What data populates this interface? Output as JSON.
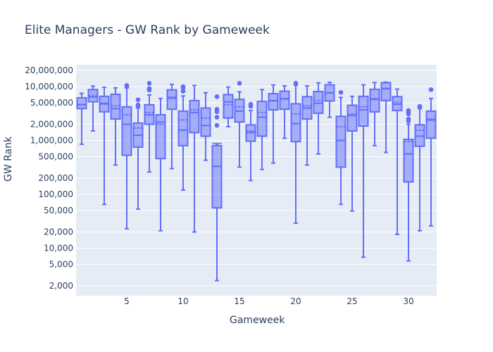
{
  "chart_data": {
    "type": "box",
    "title": "Elite Managers - GW Rank by Gameweek",
    "xlabel": "Gameweek",
    "ylabel": "GW Rank",
    "yscale": "log",
    "ylim": [
      1700,
      21000
    ],
    "ylim_note": "approx 1,700 to 21,000,000",
    "y_range": [
      1700,
      21000000
    ],
    "x_range": [
      0.5,
      32.5
    ],
    "yticks": [
      2000,
      5000,
      10000,
      20000,
      50000,
      100000,
      200000,
      500000,
      1000000,
      2000000,
      5000000,
      10000000,
      20000000
    ],
    "ytick_labels": [
      "2,000",
      "5,000",
      "10,000",
      "20,000",
      "50,000",
      "100,000",
      "200,000",
      "500,000",
      "1,000,000",
      "2,000,000",
      "5,000,000",
      "10,000,000",
      "20,000,000"
    ],
    "xticks": [
      5,
      10,
      15,
      20,
      25,
      30
    ],
    "xtick_labels": [
      "5",
      "10",
      "15",
      "20",
      "25",
      "30"
    ],
    "color": "#636efa",
    "fill": "rgba(99,110,250,0.5)",
    "grid": true,
    "legend": false,
    "boxes": [
      {
        "x": 1,
        "lf": 850000,
        "q1": 3900000,
        "med": 4600000,
        "q3": 6200000,
        "uf": 7500000,
        "mean": 4700000,
        "out": []
      },
      {
        "x": 2,
        "lf": 1500000,
        "q1": 5200000,
        "med": 6400000,
        "q3": 8800000,
        "uf": 10200000,
        "mean": 6800000,
        "out": []
      },
      {
        "x": 3,
        "lf": 65000,
        "q1": 3400000,
        "med": 4900000,
        "q3": 6600000,
        "uf": 9700000,
        "mean": 4700000,
        "out": []
      },
      {
        "x": 4,
        "lf": 350000,
        "q1": 2500000,
        "med": 3900000,
        "q3": 7200000,
        "uf": 9500000,
        "mean": 4400000,
        "out": []
      },
      {
        "x": 5,
        "lf": 23000,
        "q1": 530000,
        "med": 2000000,
        "q3": 4200000,
        "uf": 9500000,
        "mean": 3000000,
        "out": [
          10500000,
          10000000
        ]
      },
      {
        "x": 6,
        "lf": 53000,
        "q1": 750000,
        "med": 1250000,
        "q3": 2100000,
        "uf": 4000000,
        "mean": 1700000,
        "out": [
          5700000,
          4600000,
          4300000
        ]
      },
      {
        "x": 7,
        "lf": 260000,
        "q1": 2000000,
        "med": 3000000,
        "q3": 4600000,
        "uf": 7000000,
        "mean": 3300000,
        "out": [
          11500000,
          9200000,
          8600000
        ]
      },
      {
        "x": 8,
        "lf": 21000,
        "q1": 460000,
        "med": 2200000,
        "q3": 3000000,
        "uf": 6000000,
        "mean": 2000000,
        "out": []
      },
      {
        "x": 9,
        "lf": 300000,
        "q1": 3800000,
        "med": 6100000,
        "q3": 8700000,
        "uf": 11000000,
        "mean": 6400000,
        "out": []
      },
      {
        "x": 10,
        "lf": 120000,
        "q1": 800000,
        "med": 1550000,
        "q3": 3500000,
        "uf": 6700000,
        "mean": 2400000,
        "out": [
          10000000,
          9500000,
          8200000
        ]
      },
      {
        "x": 11,
        "lf": 20000,
        "q1": 1400000,
        "med": 3300000,
        "q3": 5500000,
        "uf": 10500000,
        "mean": 3700000,
        "out": []
      },
      {
        "x": 12,
        "lf": 430000,
        "q1": 1200000,
        "med": 1900000,
        "q3": 4000000,
        "uf": 7700000,
        "mean": 2600000,
        "out": []
      },
      {
        "x": 13,
        "lf": 2500,
        "q1": 56000,
        "med": 330000,
        "q3": 800000,
        "uf": 870000,
        "mean": 880000,
        "out": [
          6500000,
          3800000,
          3400000,
          2700000,
          1900000
        ]
      },
      {
        "x": 14,
        "lf": 1800000,
        "q1": 2600000,
        "med": 5200000,
        "q3": 7100000,
        "uf": 9800000,
        "mean": 4600000,
        "out": []
      },
      {
        "x": 15,
        "lf": 320000,
        "q1": 2200000,
        "med": 3500000,
        "q3": 5800000,
        "uf": 8000000,
        "mean": 4200000,
        "out": [
          11500000
        ]
      },
      {
        "x": 16,
        "lf": 180000,
        "q1": 970000,
        "med": 1400000,
        "q3": 1950000,
        "uf": 3600000,
        "mean": 1500000,
        "out": [
          4700000,
          4300000
        ]
      },
      {
        "x": 17,
        "lf": 290000,
        "q1": 1200000,
        "med": 2700000,
        "q3": 5300000,
        "uf": 8800000,
        "mean": 3300000,
        "out": []
      },
      {
        "x": 18,
        "lf": 380000,
        "q1": 3700000,
        "med": 5500000,
        "q3": 7400000,
        "uf": 10700000,
        "mean": 5400000,
        "out": []
      },
      {
        "x": 19,
        "lf": 1100000,
        "q1": 3800000,
        "med": 5900000,
        "q3": 8200000,
        "uf": 10300000,
        "mean": 6000000,
        "out": []
      },
      {
        "x": 20,
        "lf": 29000,
        "q1": 950000,
        "med": 2050000,
        "q3": 4800000,
        "uf": 10500000,
        "mean": 3100000,
        "out": [
          11500000
        ]
      },
      {
        "x": 21,
        "lf": 350000,
        "q1": 2500000,
        "med": 4000000,
        "q3": 6500000,
        "uf": 10300000,
        "mean": 4400000,
        "out": []
      },
      {
        "x": 22,
        "lf": 560000,
        "q1": 3200000,
        "med": 4900000,
        "q3": 8100000,
        "uf": 11700000,
        "mean": 5500000,
        "out": []
      },
      {
        "x": 23,
        "lf": 2700000,
        "q1": 5400000,
        "med": 7700000,
        "q3": 10800000,
        "uf": 12000000,
        "mean": 7600000,
        "out": []
      },
      {
        "x": 24,
        "lf": 65000,
        "q1": 320000,
        "med": 1000000,
        "q3": 2800000,
        "uf": 6300000,
        "mean": 1800000,
        "out": [
          7800000
        ]
      },
      {
        "x": 25,
        "lf": 49000,
        "q1": 1500000,
        "med": 2900000,
        "q3": 4500000,
        "uf": 6600000,
        "mean": 3100000,
        "out": []
      },
      {
        "x": 26,
        "lf": 6800,
        "q1": 1850000,
        "med": 3700000,
        "q3": 6600000,
        "uf": 10800000,
        "mean": 4200000,
        "out": []
      },
      {
        "x": 27,
        "lf": 800000,
        "q1": 3400000,
        "med": 5800000,
        "q3": 8900000,
        "uf": 11900000,
        "mean": 6000000,
        "out": []
      },
      {
        "x": 28,
        "lf": 600000,
        "q1": 5500000,
        "med": 9100000,
        "q3": 11800000,
        "uf": 12100000,
        "mean": 9300000,
        "out": []
      },
      {
        "x": 29,
        "lf": 18000,
        "q1": 3600000,
        "med": 4700000,
        "q3": 6500000,
        "uf": 9000000,
        "mean": 5100000,
        "out": []
      },
      {
        "x": 30,
        "lf": 5800,
        "q1": 170000,
        "med": 560000,
        "q3": 1050000,
        "uf": 2000000,
        "mean": 960000,
        "out": [
          3600000,
          3300000,
          3100000,
          2500000,
          2300000
        ]
      },
      {
        "x": 31,
        "lf": 21000,
        "q1": 780000,
        "med": 1200000,
        "q3": 1950000,
        "uf": 3900000,
        "mean": 1550000,
        "out": [
          4300000,
          4100000
        ]
      },
      {
        "x": 32,
        "lf": 26000,
        "q1": 1100000,
        "med": 2400000,
        "q3": 3500000,
        "uf": 6000000,
        "mean": 2500000,
        "out": [
          8800000
        ]
      }
    ]
  }
}
